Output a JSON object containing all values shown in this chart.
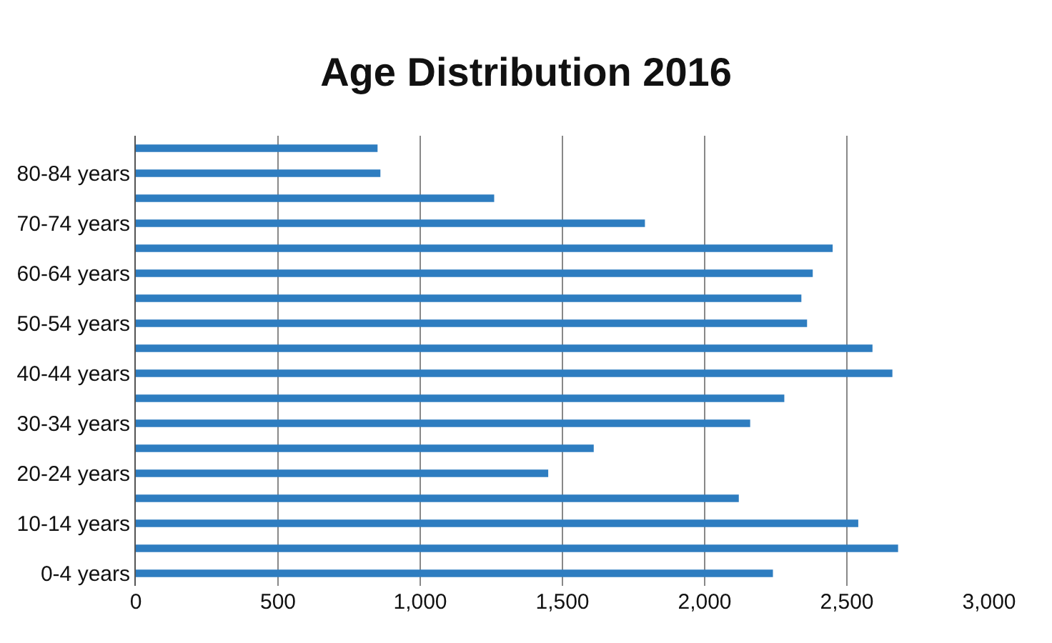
{
  "chart_data": {
    "type": "bar",
    "orientation": "horizontal",
    "title": "Age Distribution 2016",
    "categories": [
      null,
      "80-84 years",
      null,
      "70-74 years",
      null,
      "60-64 years",
      null,
      "50-54 years",
      null,
      "40-44 years",
      null,
      "30-34 years",
      null,
      "20-24 years",
      null,
      "10-14 years",
      null,
      "0-4 years"
    ],
    "values": [
      850,
      860,
      1260,
      1790,
      2450,
      2380,
      2340,
      2360,
      2590,
      2660,
      2280,
      2160,
      1610,
      1450,
      2120,
      2540,
      2680,
      2240
    ],
    "color": "#2e7dc0",
    "xlim": [
      0,
      3000
    ],
    "xticks": [
      {
        "value": 0,
        "label": "0"
      },
      {
        "value": 500,
        "label": "500"
      },
      {
        "value": 1000,
        "label": "1,000"
      },
      {
        "value": 1500,
        "label": "1,500"
      },
      {
        "value": 2000,
        "label": "2,000"
      },
      {
        "value": 2500,
        "label": "2,500"
      },
      {
        "value": 3000,
        "label": "3,000"
      }
    ],
    "grid": "x"
  }
}
